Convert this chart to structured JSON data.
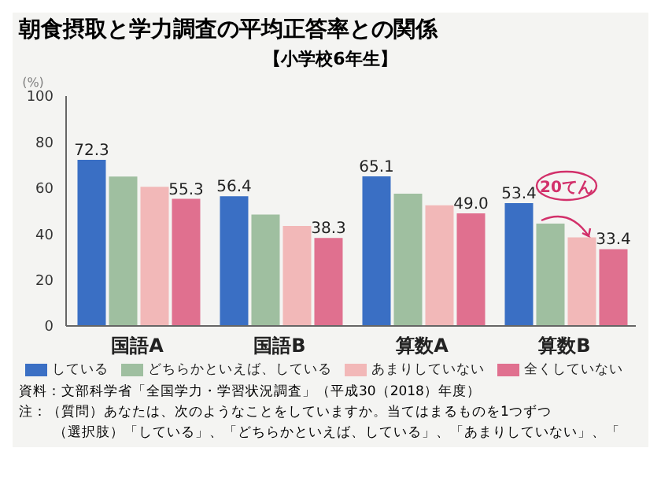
{
  "chart_data": {
    "type": "bar",
    "title": "朝食摂取と学力調査の平均正答率との関係",
    "subtitle": "【小学校6年生】",
    "ylabel": "(%)",
    "categories": [
      "国語A",
      "国語B",
      "算数A",
      "算数B"
    ],
    "series": [
      {
        "name": "している",
        "color": "#3a6fc4",
        "values": [
          72.3,
          56.4,
          65.1,
          53.4
        ],
        "value_labels": [
          "72.3",
          "56.4",
          "65.1",
          "53.4"
        ]
      },
      {
        "name": "どちらかといえば、している",
        "color": "#9fbfa0",
        "values": [
          65,
          48.5,
          57.5,
          44.5
        ],
        "value_labels": [
          null,
          null,
          null,
          null
        ]
      },
      {
        "name": "あまりしていない",
        "color": "#f2b8b8",
        "values": [
          60.5,
          43.5,
          52.5,
          38.5
        ],
        "value_labels": [
          null,
          null,
          null,
          null
        ]
      },
      {
        "name": "全くしていない",
        "color": "#e0708f",
        "values": [
          55.3,
          38.3,
          49.0,
          33.4
        ],
        "value_labels": [
          "55.3",
          "38.3",
          "49.0",
          "33.4"
        ]
      }
    ],
    "ylim": [
      0,
      100
    ],
    "yticks": [
      0,
      20,
      40,
      60,
      80,
      100
    ],
    "legend": "bottom",
    "annotations": [
      "20てん",
      "資料：文部科学省「全国学力・学習状況調査」（平成30（2018）年度）",
      "注：（質問）あなたは、次のようなことをしていますか。当てはまるものを1つずつ",
      "（選択肢）「している」、「どちらかといえば、している」、「あまりしていない」、「"
    ]
  }
}
